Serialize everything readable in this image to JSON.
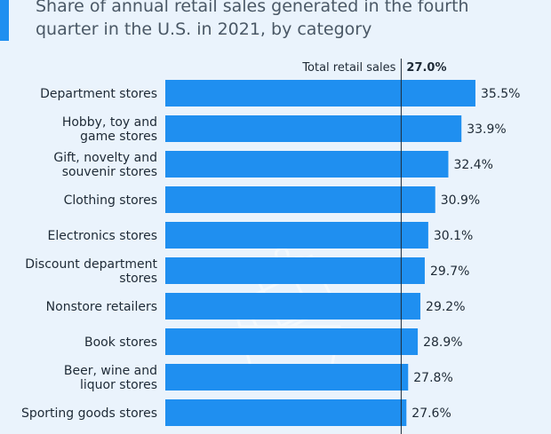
{
  "chart_data": {
    "type": "bar",
    "orientation": "horizontal",
    "title": "Share of annual retail sales generated in the fourth quarter in the U.S. in 2021, by category",
    "categories": [
      "Department stores",
      "Hobby, toy and game stores",
      "Gift, novelty and souvenir stores",
      "Clothing stores",
      "Electronics stores",
      "Discount department stores",
      "Nonstore retailers",
      "Book stores",
      "Beer, wine and liquor stores",
      "Sporting goods stores"
    ],
    "category_lines": [
      [
        "Department stores"
      ],
      [
        "Hobby, toy and",
        "game stores"
      ],
      [
        "Gift, novelty and",
        "souvenir stores"
      ],
      [
        "Clothing stores"
      ],
      [
        "Electronics stores"
      ],
      [
        "Discount department",
        "stores"
      ],
      [
        "Nonstore retailers"
      ],
      [
        "Book stores"
      ],
      [
        "Beer, wine and",
        "liquor stores"
      ],
      [
        "Sporting goods stores"
      ]
    ],
    "values": [
      35.5,
      33.9,
      32.4,
      30.9,
      30.1,
      29.7,
      29.2,
      28.9,
      27.8,
      27.6
    ],
    "value_labels": [
      "35.5%",
      "33.9%",
      "32.4%",
      "30.9%",
      "30.1%",
      "29.7%",
      "29.2%",
      "28.9%",
      "27.8%",
      "27.6%"
    ],
    "reference_line": {
      "label": "Total retail sales",
      "value": 27.0,
      "value_label": "27.0%"
    },
    "bar_color": "#1f8ff0",
    "grid": false,
    "legend": "none"
  }
}
